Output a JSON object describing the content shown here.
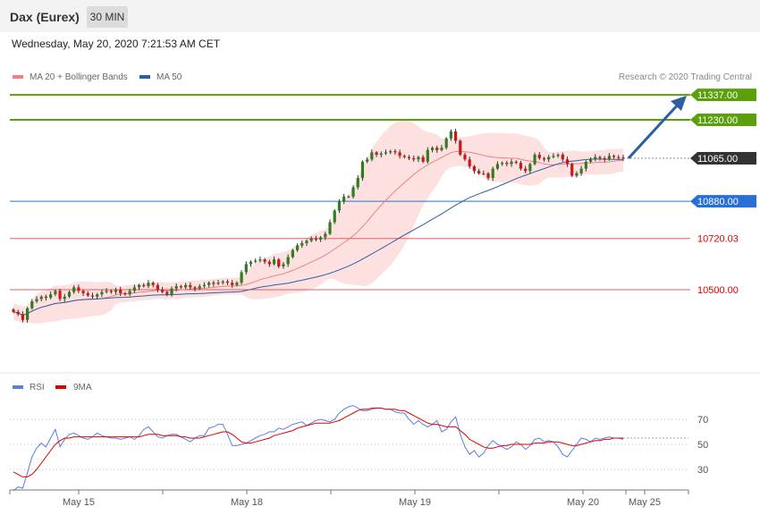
{
  "header": {
    "title": "Dax (Eurex)",
    "period": "30 MIN"
  },
  "datetime": "Wednesday, May 20, 2020 7:21:53 AM CET",
  "legend": {
    "ma20": {
      "label": "MA 20 + Bollinger Bands",
      "color": "#f08080"
    },
    "ma50": {
      "label": "MA 50",
      "color": "#2e5fa3"
    },
    "credit": "Research © 2020 Trading Central"
  },
  "rsi_legend": {
    "rsi": {
      "label": "RSI",
      "color": "#5b7fe0"
    },
    "ma9": {
      "label": "9MA",
      "color": "#e00000"
    }
  },
  "chart_data": [
    {
      "type": "candlestick",
      "ylim": [
        10350,
        11400
      ],
      "x_labels": [
        "May 15",
        "May 18",
        "May 19",
        "May 20",
        "May 25"
      ],
      "levels": [
        {
          "value": 11337.0,
          "label": "11337.00",
          "color": "#5aa00a",
          "style": "badge"
        },
        {
          "value": 11230.0,
          "label": "11230.00",
          "color": "#5aa00a",
          "style": "badge"
        },
        {
          "value": 11065.0,
          "label": "11065.00",
          "color": "#333333",
          "style": "badge-dotted"
        },
        {
          "value": 10880.0,
          "label": "10880.00",
          "color": "#2a6fd6",
          "style": "badge"
        },
        {
          "value": 10720.03,
          "label": "10720.03",
          "color": "#e06060",
          "style": "text"
        },
        {
          "value": 10500.0,
          "label": "10500.00",
          "color": "#e06060",
          "style": "text"
        }
      ],
      "close": [
        10405,
        10395,
        10370,
        10420,
        10450,
        10460,
        10470,
        10465,
        10480,
        10495,
        10460,
        10470,
        10490,
        10510,
        10495,
        10485,
        10475,
        10470,
        10480,
        10490,
        10495,
        10490,
        10500,
        10485,
        10480,
        10495,
        10510,
        10520,
        10515,
        10530,
        10520,
        10500,
        10490,
        10480,
        10505,
        10515,
        10510,
        10520,
        10510,
        10505,
        10515,
        10520,
        10530,
        10525,
        10530,
        10535,
        10530,
        10520,
        10530,
        10575,
        10610,
        10620,
        10625,
        10630,
        10620,
        10610,
        10630,
        10600,
        10610,
        10640,
        10670,
        10690,
        10700,
        10710,
        10720,
        10715,
        10725,
        10740,
        10790,
        10840,
        10880,
        10900,
        10900,
        10940,
        10980,
        11050,
        11060,
        11090,
        11080,
        11085,
        11090,
        11095,
        11090,
        11075,
        11070,
        11065,
        11060,
        11070,
        11050,
        11100,
        11110,
        11100,
        11110,
        11150,
        11180,
        11140,
        11080,
        11060,
        11030,
        11010,
        11000,
        11000,
        10980,
        11020,
        11040,
        11045,
        11040,
        11050,
        11045,
        11020,
        11010,
        11040,
        11080,
        11065,
        11060,
        11070,
        11075,
        11080,
        11060,
        11040,
        10990,
        11000,
        11020,
        11050,
        11060,
        11070,
        11065,
        11060,
        11075,
        11070,
        11068,
        11065
      ],
      "rsi": {
        "ylim": [
          10,
          90
        ],
        "gridlines": [
          70,
          50,
          30
        ],
        "rsi_values": [
          13,
          16,
          15,
          27,
          40,
          47,
          51,
          48,
          55,
          62,
          48,
          54,
          58,
          59,
          57,
          55,
          54,
          56,
          59,
          57,
          56,
          55,
          55,
          54,
          55,
          56,
          54,
          57,
          62,
          64,
          60,
          56,
          55,
          57,
          58,
          58,
          56,
          54,
          52,
          55,
          57,
          57,
          63,
          64,
          66,
          66,
          58,
          49,
          49,
          50,
          51,
          53,
          55,
          57,
          58,
          60,
          60,
          63,
          62,
          64,
          66,
          67,
          68,
          65,
          67,
          69,
          70,
          69,
          68,
          70,
          75,
          78,
          80,
          81,
          79,
          77,
          77,
          78,
          79,
          79,
          78,
          78,
          76,
          75,
          75,
          70,
          66,
          69,
          66,
          64,
          66,
          69,
          60,
          62,
          68,
          72,
          58,
          48,
          42,
          45,
          40,
          43,
          49,
          53,
          50,
          48,
          46,
          48,
          52,
          50,
          46,
          49,
          54,
          55,
          52,
          53,
          52,
          48,
          42,
          40,
          45,
          50,
          55,
          54,
          52,
          55,
          54,
          55,
          56,
          55,
          55,
          54
        ],
        "ma9_values": [
          28,
          26,
          24,
          24,
          26,
          30,
          35,
          40,
          45,
          50,
          53,
          55,
          55,
          56,
          56,
          56,
          56,
          56,
          56,
          56,
          56,
          56,
          56,
          56,
          56,
          56,
          56,
          56,
          57,
          58,
          58,
          58,
          57,
          57,
          57,
          57,
          56,
          56,
          55,
          55,
          55,
          56,
          57,
          58,
          59,
          60,
          60,
          58,
          55,
          52,
          51,
          51,
          52,
          53,
          54,
          55,
          57,
          58,
          59,
          60,
          61,
          63,
          64,
          65,
          66,
          67,
          67,
          67,
          67,
          68,
          69,
          71,
          73,
          75,
          77,
          78,
          78,
          79,
          79,
          79,
          78,
          78,
          78,
          77,
          77,
          75,
          73,
          71,
          69,
          67,
          66,
          66,
          65,
          64,
          64,
          64,
          61,
          58,
          54,
          52,
          50,
          48,
          47,
          47,
          48,
          49,
          49,
          50,
          50,
          50,
          50,
          50,
          51,
          51,
          51,
          52,
          52,
          52,
          51,
          50,
          49,
          49,
          50,
          51,
          52,
          53,
          53,
          54,
          54,
          55,
          55,
          55
        ]
      }
    }
  ]
}
